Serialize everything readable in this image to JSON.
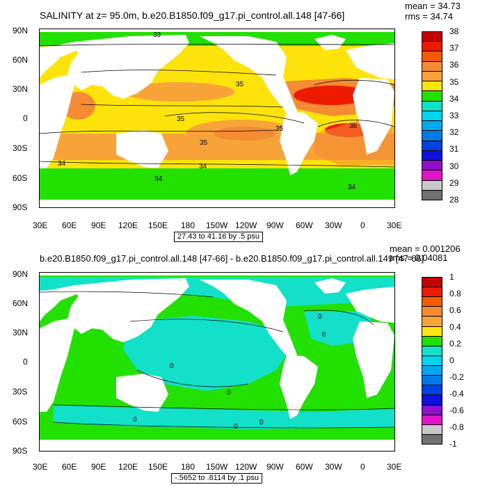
{
  "panels": [
    {
      "id": "top",
      "title": "SALINITY at z=  95.0m, b.e20.B1850.f09_g17.pi_control.all.148 [47-66]",
      "stats": {
        "mean": "mean = 34.73",
        "rms": "rms = 34.74"
      },
      "range_label": "27.43 to 41.16 by .5 psu",
      "colorbar": {
        "labels": [
          "38",
          "37",
          "36",
          "35",
          "34",
          "33",
          "32",
          "31",
          "30",
          "29",
          "28"
        ],
        "colors": [
          "#c40000",
          "#ee1a00",
          "#f25c00",
          "#f58b33",
          "#f8a338",
          "#fde30a",
          "#22e000",
          "#12e0c8",
          "#00d4ee",
          "#00a8f0",
          "#007ae8",
          "#0042e0",
          "#1010e0",
          "#9010cc",
          "#e014c8",
          "#c8c8c8",
          "#707070"
        ]
      },
      "contour_labels": [
        "33",
        "35",
        "35",
        "34",
        "34",
        "34",
        "35",
        "34",
        "35",
        "36"
      ]
    },
    {
      "id": "bottom",
      "title": "b.e20.B1850.f09_g17.pi_control.all.148 [47-66] - b.e20.B1850.f09_g17.pi_control.all.149 [47-66]",
      "stats": {
        "mean": "mean = 0.001206",
        "rms": "rms = 0.04081"
      },
      "range_label": "-.5652 to .8114 by .1 psu",
      "colorbar": {
        "labels": [
          "1",
          "0.8",
          "0.6",
          "0.4",
          "0.2",
          "0",
          "-0.2",
          "-0.4",
          "-0.6",
          "-0.8",
          "-1"
        ],
        "colors": [
          "#c40000",
          "#ee1a00",
          "#f25c00",
          "#f58b33",
          "#f8a338",
          "#fde30a",
          "#22e000",
          "#12e0c8",
          "#00d4ee",
          "#00a8f0",
          "#007ae8",
          "#0042e0",
          "#1010e0",
          "#9010cc",
          "#e014c8",
          "#c8c8c8",
          "#707070"
        ]
      },
      "contour_labels": [
        "0",
        "0",
        "0",
        "0",
        "0",
        "0",
        "0"
      ]
    }
  ],
  "axes": {
    "lat_labels": [
      "90N",
      "60N",
      "30N",
      "0",
      "30S",
      "60S",
      "90S"
    ],
    "lon_labels": [
      "30E",
      "60E",
      "90E",
      "120E",
      "150E",
      "180",
      "150W",
      "120W",
      "90W",
      "60W",
      "30W",
      "0",
      "30E"
    ]
  }
}
